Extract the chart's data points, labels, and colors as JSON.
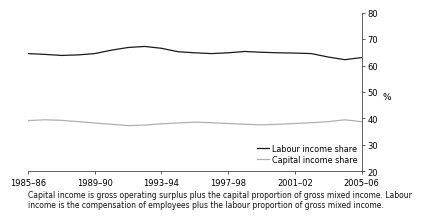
{
  "ylabel": "%",
  "xlim": [
    0,
    20
  ],
  "ylim": [
    20,
    80
  ],
  "yticks": [
    20,
    30,
    40,
    50,
    60,
    70,
    80
  ],
  "xtick_labels": [
    "1985–86",
    "1989–90",
    "1993–94",
    "1997–98",
    "2001–02",
    "2005–06"
  ],
  "xtick_positions": [
    0,
    4,
    8,
    12,
    16,
    20
  ],
  "labour_color": "#1a1a1a",
  "capital_color": "#b0b0b0",
  "background_color": "#ffffff",
  "footnote_line1": "Capital income is ",
  "footnote_line2": "gross",
  "footnote_line3": " operating surplus plus the capital proportion of ",
  "footnote_line4": "gross",
  "footnote_line5": " mixed income. Labour",
  "footnote_line6": "income is the compensation of employees plus the labour proportion of ",
  "footnote_line7": "gross",
  "footnote_line8": " mixed income.",
  "labour_label": "Labour income share",
  "capital_label": "Capital income share",
  "labour_data": [
    64.5,
    64.2,
    63.8,
    64.0,
    64.5,
    65.8,
    66.8,
    67.2,
    66.5,
    65.2,
    64.8,
    64.5,
    64.8,
    65.3,
    65.0,
    64.8,
    64.7,
    64.5,
    63.2,
    62.2,
    63.0
  ],
  "capital_data": [
    39.2,
    39.5,
    39.3,
    38.8,
    38.3,
    37.8,
    37.3,
    37.5,
    38.0,
    38.3,
    38.6,
    38.4,
    38.1,
    37.8,
    37.6,
    37.8,
    38.1,
    38.4,
    38.8,
    39.5,
    38.8
  ]
}
